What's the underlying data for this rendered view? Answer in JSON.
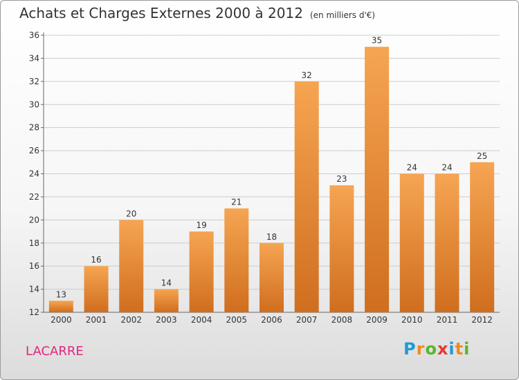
{
  "title": "Achats et Charges Externes 2000 à 2012",
  "subtitle": "(en milliers d'€)",
  "place": "LACARRE",
  "logo": {
    "letters": [
      "P",
      "r",
      "o",
      "x",
      "i",
      "t",
      "i"
    ],
    "colors": [
      "#1f9bd6",
      "#f08a1c",
      "#59b62b",
      "#e53b2e",
      "#1f9bd6",
      "#f08a1c",
      "#59b62b"
    ]
  },
  "colors": {
    "bar_light": "#f6a552",
    "bar_dark": "#cf6e1e",
    "text": "#333333",
    "grid": "#cccccc"
  },
  "chart_data": {
    "type": "bar",
    "title": "Achats et Charges Externes 2000 à 2012",
    "subtitle": "(en milliers d'€)",
    "categories": [
      "2000",
      "2001",
      "2002",
      "2003",
      "2004",
      "2005",
      "2006",
      "2007",
      "2008",
      "2009",
      "2010",
      "2011",
      "2012"
    ],
    "values": [
      13,
      16,
      20,
      14,
      19,
      21,
      18,
      32,
      23,
      35,
      24,
      24,
      25
    ],
    "ylim": [
      12,
      36
    ],
    "yticks": [
      12,
      14,
      16,
      18,
      20,
      22,
      24,
      26,
      28,
      30,
      32,
      34,
      36
    ],
    "grid": true,
    "legend": "none"
  }
}
